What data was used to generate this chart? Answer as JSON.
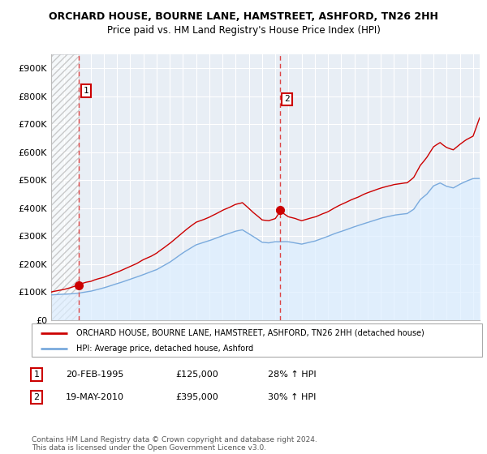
{
  "title": "ORCHARD HOUSE, BOURNE LANE, HAMSTREET, ASHFORD, TN26 2HH",
  "subtitle": "Price paid vs. HM Land Registry's House Price Index (HPI)",
  "ylabel_ticks": [
    "£0",
    "£100K",
    "£200K",
    "£300K",
    "£400K",
    "£500K",
    "£600K",
    "£700K",
    "£800K",
    "£900K"
  ],
  "ytick_vals": [
    0,
    100000,
    200000,
    300000,
    400000,
    500000,
    600000,
    700000,
    800000,
    900000
  ],
  "ylim": [
    0,
    950000
  ],
  "xlim_start": 1993.0,
  "xlim_end": 2025.5,
  "sale1_x": 1995.12,
  "sale1_y": 125000,
  "sale2_x": 2010.38,
  "sale2_y": 395000,
  "red_line_color": "#cc0000",
  "blue_line_color": "#7aaadd",
  "dashed_line_color": "#dd4444",
  "fill_color": "#ddeeff",
  "legend_label1": "ORCHARD HOUSE, BOURNE LANE, HAMSTREET, ASHFORD, TN26 2HH (detached house)",
  "legend_label2": "HPI: Average price, detached house, Ashford",
  "table_rows": [
    [
      "1",
      "20-FEB-1995",
      "£125,000",
      "28% ↑ HPI"
    ],
    [
      "2",
      "19-MAY-2010",
      "£395,000",
      "30% ↑ HPI"
    ]
  ],
  "footer": "Contains HM Land Registry data © Crown copyright and database right 2024.\nThis data is licensed under the Open Government Licence v3.0.",
  "bg_color": "#ffffff",
  "plot_bg_color": "#e8eef5",
  "grid_color": "#ffffff"
}
